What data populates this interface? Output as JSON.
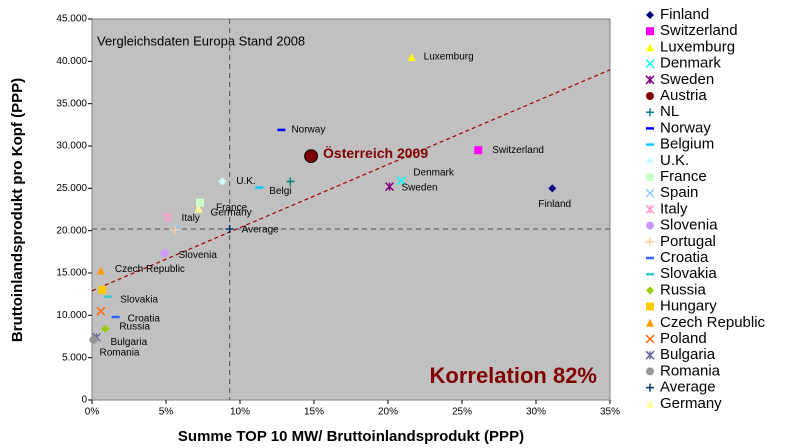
{
  "chart_data": {
    "type": "scatter",
    "annotation": "Vergleichsdaten  Europa Stand 2008",
    "correlation_label": "Korrelation 82%",
    "xlabel": "Summe TOP 10 MW/ Bruttoinlandsprodukt (PPP)",
    "ylabel": "Bruttoinlandsprodukt pro Kopf (PPP)",
    "xlim": [
      0,
      35
    ],
    "xticks": [
      {
        "value": 0,
        "label": "0%"
      },
      {
        "value": 5,
        "label": "5%"
      },
      {
        "value": 10,
        "label": "10%"
      },
      {
        "value": 15,
        "label": "15%"
      },
      {
        "value": 20,
        "label": "20%"
      },
      {
        "value": 25,
        "label": "25%"
      },
      {
        "value": 30,
        "label": "30%"
      },
      {
        "value": 35,
        "label": "35%"
      }
    ],
    "ylim": [
      0,
      45000
    ],
    "yticks": [
      0,
      {
        "value": 5000,
        "label": "5.000"
      },
      {
        "value": 10000,
        "label": "10.000"
      },
      {
        "value": 15000,
        "label": "15.000"
      },
      {
        "value": 20000,
        "label": "20.000"
      },
      {
        "value": 25000,
        "label": "25.000"
      },
      {
        "value": 30000,
        "label": "30.000"
      },
      {
        "value": 35000,
        "label": "35.000"
      },
      {
        "value": 40000,
        "label": "40.000"
      },
      {
        "value": 45000,
        "label": "45.000"
      }
    ],
    "trendline": {
      "color": "#a00000",
      "x": [
        0,
        35
      ],
      "values": [
        12900,
        39000
      ]
    },
    "series": [
      {
        "name": "Finland",
        "color": "#000080",
        "marker": "diamond",
        "x": [
          31.1
        ],
        "values": [
          25000
        ],
        "label": "Finland"
      },
      {
        "name": "Switzerland",
        "color": "#ff00ff",
        "marker": "square",
        "x": [
          26.1
        ],
        "values": [
          29500
        ],
        "label": "Switzerland"
      },
      {
        "name": "Luxemburg",
        "color": "#ffff00",
        "marker": "triangle",
        "x": [
          21.6
        ],
        "values": [
          40500
        ],
        "label": "Luxemburg"
      },
      {
        "name": "Denmark",
        "color": "#00ffff",
        "marker": "x",
        "x": [
          20.9
        ],
        "values": [
          25900
        ],
        "label": "Denmark"
      },
      {
        "name": "Sweden",
        "color": "#800080",
        "marker": "star",
        "x": [
          20.1
        ],
        "values": [
          25200
        ],
        "label": "Sweden"
      },
      {
        "name": "Austria",
        "color": "#800000",
        "marker": "circle",
        "x": [
          14.8
        ],
        "values": [
          28800
        ],
        "label": "Österreich 2009"
      },
      {
        "name": "NL",
        "color": "#008080",
        "marker": "plus",
        "x": [
          13.4
        ],
        "values": [
          25800
        ]
      },
      {
        "name": "Norway",
        "color": "#0000ff",
        "marker": "dash",
        "x": [
          12.8
        ],
        "values": [
          31900
        ],
        "label": "Norway"
      },
      {
        "name": "Belgium",
        "color": "#00ccff",
        "marker": "dash",
        "x": [
          11.3
        ],
        "values": [
          25100
        ],
        "label": "Belgi"
      },
      {
        "name": "U.K.",
        "color": "#ccffff",
        "marker": "diamond",
        "x": [
          8.8
        ],
        "values": [
          25800
        ],
        "label": "U.K."
      },
      {
        "name": "France",
        "color": "#ccffcc",
        "marker": "square",
        "x": [
          7.3
        ],
        "values": [
          23300
        ],
        "label": "France"
      },
      {
        "name": "Spain",
        "color": "#99ccff",
        "marker": "x",
        "x": [
          5.7
        ],
        "values": [
          20300
        ]
      },
      {
        "name": "Italy",
        "color": "#ff99cc",
        "marker": "star",
        "x": [
          5.1
        ],
        "values": [
          21600
        ],
        "label": "Italy"
      },
      {
        "name": "Slovenia",
        "color": "#cc99ff",
        "marker": "circle",
        "x": [
          4.9
        ],
        "values": [
          17300
        ],
        "label": "Slovenia"
      },
      {
        "name": "Portugal",
        "color": "#ffcc99",
        "marker": "plus",
        "x": [
          5.6
        ],
        "values": [
          20100
        ]
      },
      {
        "name": "Croatia",
        "color": "#3366ff",
        "marker": "dash",
        "x": [
          1.6
        ],
        "values": [
          9800
        ],
        "label": "Croatia"
      },
      {
        "name": "Slovakia",
        "color": "#33cccc",
        "marker": "dash",
        "x": [
          1.1
        ],
        "values": [
          12200
        ],
        "label": "Slovakia"
      },
      {
        "name": "Russia",
        "color": "#99cc00",
        "marker": "diamond",
        "x": [
          0.9
        ],
        "values": [
          8400
        ],
        "label": "Russia"
      },
      {
        "name": "Hungary",
        "color": "#ffcc00",
        "marker": "square",
        "x": [
          0.7
        ],
        "values": [
          13000
        ]
      },
      {
        "name": "Czech Republic",
        "color": "#ff9900",
        "marker": "triangle",
        "x": [
          0.6
        ],
        "values": [
          15300
        ],
        "label": "Czech Republic"
      },
      {
        "name": "Poland",
        "color": "#ff6600",
        "marker": "x",
        "x": [
          0.6
        ],
        "values": [
          10500
        ]
      },
      {
        "name": "Bulgaria",
        "color": "#666699",
        "marker": "star",
        "x": [
          0.3
        ],
        "values": [
          7400
        ],
        "label": "Bulgaria"
      },
      {
        "name": "Romania",
        "color": "#969696",
        "marker": "circle",
        "x": [
          0.1
        ],
        "values": [
          7100
        ],
        "label": "Romania"
      },
      {
        "name": "Average",
        "color": "#003366",
        "marker": "plus",
        "x": [
          9.3
        ],
        "values": [
          20200
        ],
        "label": "Average"
      },
      {
        "name": "Germany",
        "color": "#ffff99",
        "marker": "triangle",
        "x": [
          7.2
        ],
        "values": [
          22600
        ],
        "label": "Germany"
      }
    ]
  }
}
